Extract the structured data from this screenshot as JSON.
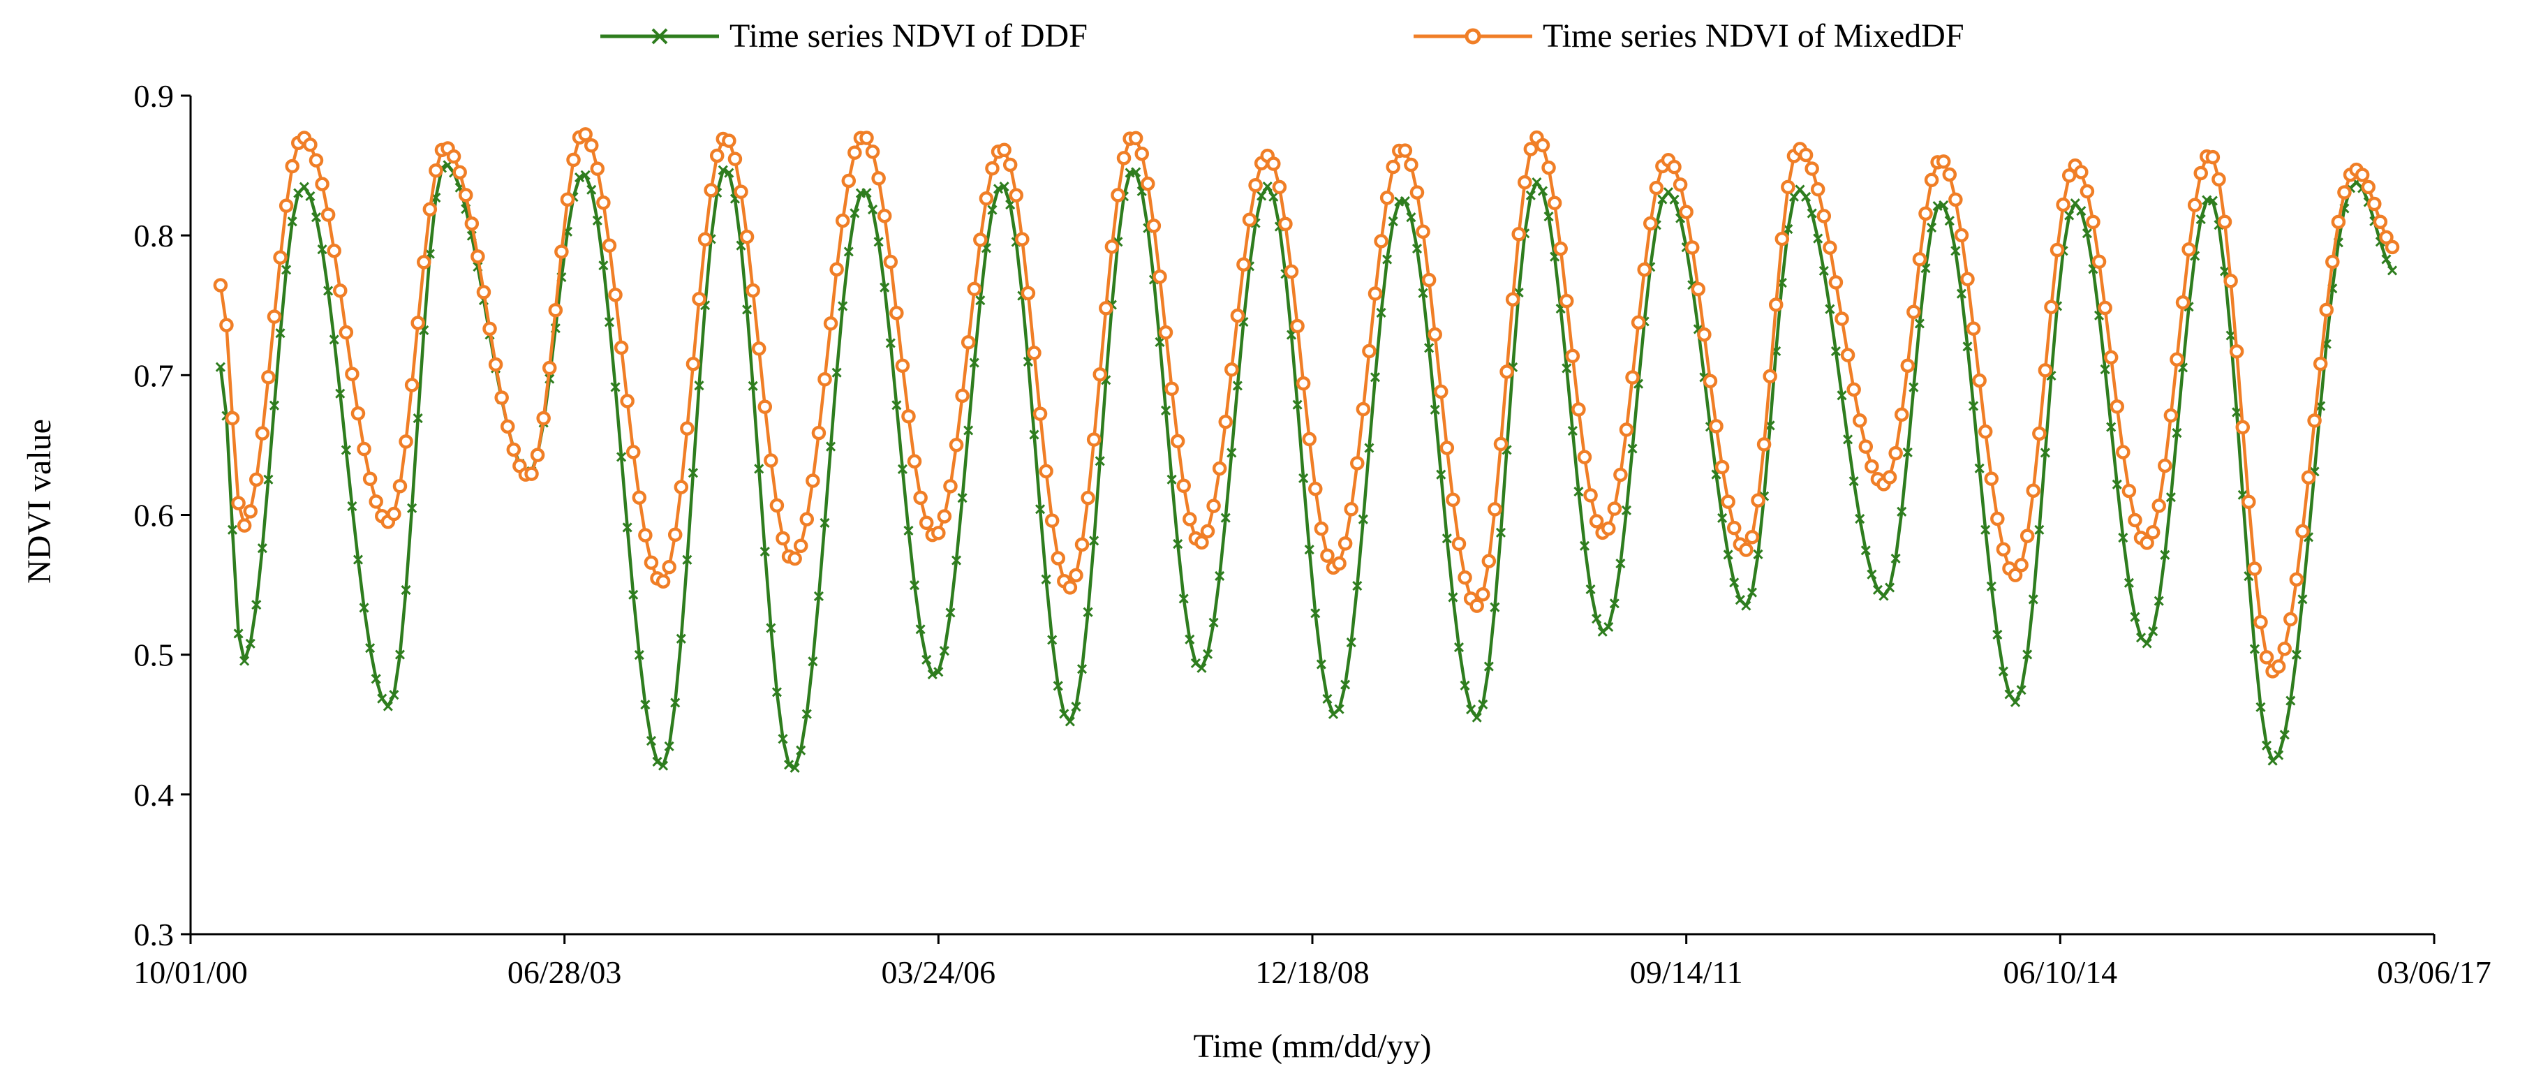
{
  "chart_data": {
    "type": "line",
    "title": "",
    "xlabel": "Time (mm/dd/yy)",
    "ylabel": "NDVI value",
    "ylim": [
      0.3,
      0.9
    ],
    "yticks": [
      0.3,
      0.4,
      0.5,
      0.6,
      0.7,
      0.8,
      0.9
    ],
    "ytick_labels": [
      "0.3",
      "0.4",
      "0.5",
      "0.6",
      "0.7",
      "0.8",
      "0.9"
    ],
    "x_range_days": [
      0,
      6000
    ],
    "xticks_days": [
      0,
      1000,
      2000,
      3000,
      4000,
      5000,
      6000
    ],
    "xtick_labels": [
      "10/01/00",
      "06/28/03",
      "03/24/06",
      "12/18/08",
      "09/14/11",
      "06/10/14",
      "03/06/17"
    ],
    "x_unit": "days since 10/01/00",
    "sample_interval_days": 16,
    "grid": false,
    "legend_position": "top-center",
    "series": [
      {
        "name": "Time series NDVI of DDF",
        "color": "#2e7d1e",
        "marker": "x",
        "start_day": 80,
        "seasons": [
          {
            "min_day": 140,
            "min": 0.495,
            "max_day": 300,
            "max": 0.835
          },
          {
            "min_day": 530,
            "min": 0.463,
            "max_day": 680,
            "max": 0.851
          },
          {
            "min_day": 905,
            "min": 0.63,
            "max_day": 1050,
            "max": 0.844
          },
          {
            "min_day": 1260,
            "min": 0.42,
            "max_day": 1430,
            "max": 0.848
          },
          {
            "min_day": 1610,
            "min": 0.418,
            "max_day": 1800,
            "max": 0.832
          },
          {
            "min_day": 1990,
            "min": 0.485,
            "max_day": 2170,
            "max": 0.836
          },
          {
            "min_day": 2350,
            "min": 0.452,
            "max_day": 2520,
            "max": 0.847
          },
          {
            "min_day": 2700,
            "min": 0.49,
            "max_day": 2880,
            "max": 0.835
          },
          {
            "min_day": 3060,
            "min": 0.457,
            "max_day": 3240,
            "max": 0.826
          },
          {
            "min_day": 3440,
            "min": 0.455,
            "max_day": 3600,
            "max": 0.838
          },
          {
            "min_day": 3780,
            "min": 0.516,
            "max_day": 3950,
            "max": 0.831
          },
          {
            "min_day": 4160,
            "min": 0.535,
            "max_day": 4300,
            "max": 0.833
          },
          {
            "min_day": 4530,
            "min": 0.542,
            "max_day": 4680,
            "max": 0.823
          },
          {
            "min_day": 4880,
            "min": 0.466,
            "max_day": 5040,
            "max": 0.823
          },
          {
            "min_day": 5230,
            "min": 0.508,
            "max_day": 5400,
            "max": 0.827
          },
          {
            "min_day": 5570,
            "min": 0.424,
            "max_day": 5790,
            "max": 0.838
          }
        ],
        "end_day": 5900,
        "end_value": 0.773
      },
      {
        "name": "Time series NDVI of MixedDF",
        "color": "#f07e26",
        "marker": "o",
        "start_day": 80,
        "seasons": [
          {
            "min_day": 140,
            "min": 0.592,
            "max_day": 300,
            "max": 0.87
          },
          {
            "min_day": 530,
            "min": 0.595,
            "max_day": 680,
            "max": 0.863
          },
          {
            "min_day": 905,
            "min": 0.628,
            "max_day": 1050,
            "max": 0.873
          },
          {
            "min_day": 1260,
            "min": 0.552,
            "max_day": 1430,
            "max": 0.87
          },
          {
            "min_day": 1610,
            "min": 0.568,
            "max_day": 1800,
            "max": 0.871
          },
          {
            "min_day": 1990,
            "min": 0.585,
            "max_day": 2170,
            "max": 0.862
          },
          {
            "min_day": 2350,
            "min": 0.548,
            "max_day": 2520,
            "max": 0.871
          },
          {
            "min_day": 2700,
            "min": 0.58,
            "max_day": 2880,
            "max": 0.857
          },
          {
            "min_day": 3060,
            "min": 0.562,
            "max_day": 3240,
            "max": 0.862
          },
          {
            "min_day": 3440,
            "min": 0.535,
            "max_day": 3600,
            "max": 0.87
          },
          {
            "min_day": 3780,
            "min": 0.587,
            "max_day": 3950,
            "max": 0.854
          },
          {
            "min_day": 4160,
            "min": 0.575,
            "max_day": 4300,
            "max": 0.862
          },
          {
            "min_day": 4530,
            "min": 0.622,
            "max_day": 4680,
            "max": 0.854
          },
          {
            "min_day": 4880,
            "min": 0.557,
            "max_day": 5040,
            "max": 0.85
          },
          {
            "min_day": 5230,
            "min": 0.58,
            "max_day": 5400,
            "max": 0.858
          },
          {
            "min_day": 5570,
            "min": 0.488,
            "max_day": 5790,
            "max": 0.847
          }
        ],
        "end_day": 5900,
        "end_value": 0.79
      }
    ]
  }
}
